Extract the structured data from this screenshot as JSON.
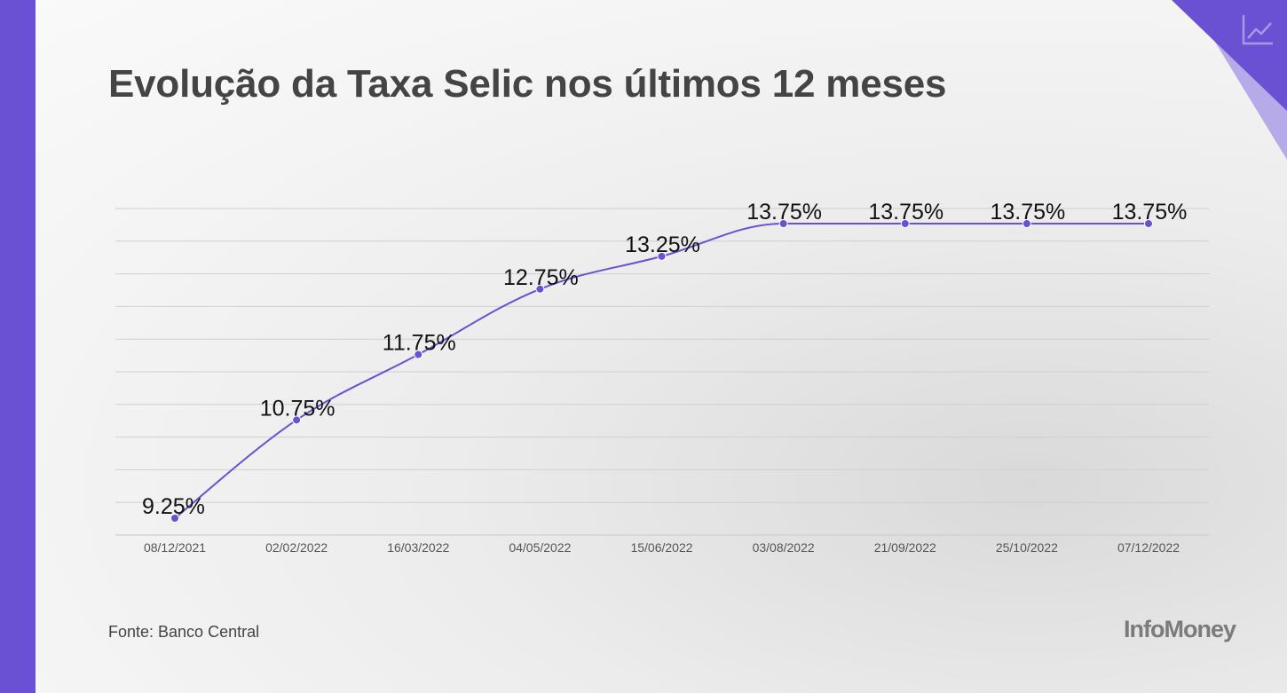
{
  "header": {
    "title": "Evolução da Taxa Selic nos últimos 12 meses"
  },
  "footer": {
    "source": "Fonte: Banco Central",
    "brand": "InfoMoney"
  },
  "colors": {
    "accent": "#6a50d3",
    "accent_light": "#b7aae8",
    "gridline": "#cfcfcf",
    "title": "#444444",
    "label": "#111111"
  },
  "icons": {
    "corner": "line-chart-icon"
  },
  "chart_data": {
    "type": "line",
    "categories": [
      "08/12/2021",
      "02/02/2022",
      "16/03/2022",
      "04/05/2022",
      "15/06/2022",
      "03/08/2022",
      "21/09/2022",
      "25/10/2022",
      "07/12/2022"
    ],
    "values": [
      9.25,
      10.75,
      11.75,
      12.75,
      13.25,
      13.75,
      13.75,
      13.75,
      13.75
    ],
    "labels": [
      "9.25%",
      "10.75%",
      "11.75%",
      "12.75%",
      "13.25%",
      "13.75%",
      "13.75%",
      "13.75%",
      "13.75%"
    ],
    "ylim": [
      9,
      14
    ],
    "grid": true,
    "legend": "none"
  }
}
